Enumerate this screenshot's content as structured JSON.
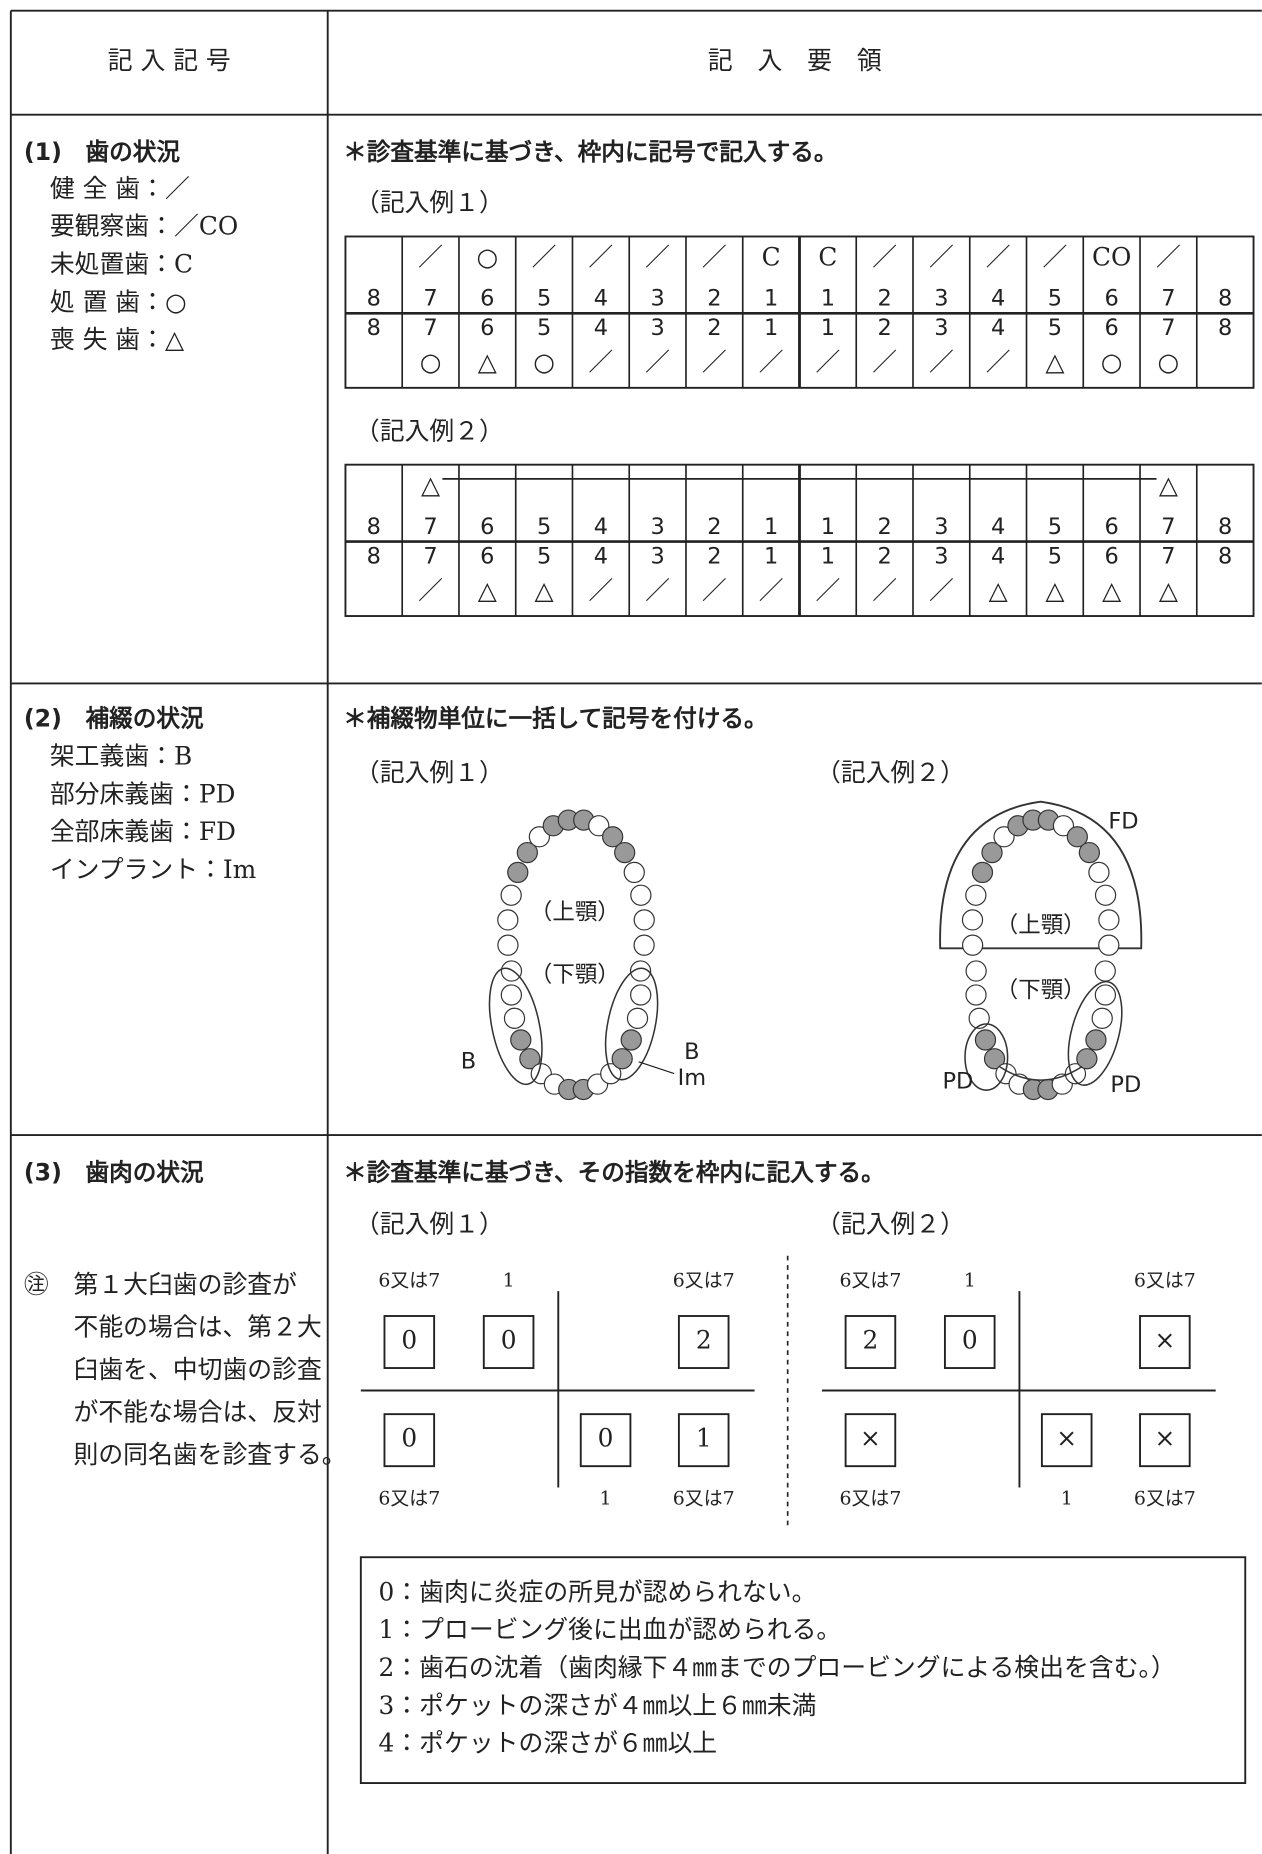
{
  "header": {
    "left": "記 入 記 号",
    "right": "記　入　要　領"
  },
  "sections": [
    {
      "title": "(1)　歯の状況",
      "items": [
        "健 全 歯：／",
        "要観察歯：／CO",
        "未処置歯：C",
        "処 置 歯：○",
        "喪 失 歯：△"
      ],
      "instruction": "＊診査基準に基づき、枠内に記号で記入する。",
      "examples": [
        {
          "label": "（記入例１）",
          "upper_symbols": [
            null,
            "／",
            "○",
            "／",
            "／",
            "／",
            "／",
            "C",
            "C",
            "／",
            "／",
            "／",
            "／",
            "CO",
            "／",
            null
          ],
          "upper_numbers": [
            8,
            7,
            6,
            5,
            4,
            3,
            2,
            1,
            1,
            2,
            3,
            4,
            5,
            6,
            7,
            8
          ],
          "lower_numbers": [
            8,
            7,
            6,
            5,
            4,
            3,
            2,
            1,
            1,
            2,
            3,
            4,
            5,
            6,
            7,
            8
          ],
          "lower_symbols": [
            null,
            "○",
            "△",
            "○",
            "／",
            "／",
            "／",
            "／",
            "／",
            "／",
            "／",
            "／",
            "△",
            "○",
            "○",
            null
          ]
        },
        {
          "label": "（記入例２）",
          "upper_symbols": [
            null,
            "△",
            null,
            null,
            null,
            null,
            null,
            null,
            null,
            null,
            null,
            null,
            null,
            null,
            "△",
            null
          ],
          "upper_numbers": [
            8,
            7,
            6,
            5,
            4,
            3,
            2,
            1,
            1,
            2,
            3,
            4,
            5,
            6,
            7,
            8
          ],
          "lower_numbers": [
            8,
            7,
            6,
            5,
            4,
            3,
            2,
            1,
            1,
            2,
            3,
            4,
            5,
            6,
            7,
            8
          ],
          "lower_symbols": [
            null,
            "／",
            "△",
            "△",
            "／",
            "／",
            "／",
            "／",
            "／",
            "／",
            "／",
            "△",
            "△",
            "△",
            "△",
            null
          ]
        }
      ]
    },
    {
      "title": "(2)　補綴の状況",
      "items": [
        "架工義歯：B",
        "部分床義歯：PD",
        "全部床義歯：FD",
        "インプラント：Im"
      ],
      "instruction": "＊補綴物単位に一括して記号を付ける。",
      "examples": [
        {
          "label": "（記入例１）",
          "labels": [
            "（上顎）",
            "（下顎）",
            "B",
            "B",
            "Im"
          ]
        },
        {
          "label": "（記入例２）",
          "labels": [
            "FD",
            "（上顎）",
            "（下顎）",
            "PD",
            "PD"
          ]
        }
      ]
    },
    {
      "title": "(3)　歯肉の状況",
      "note": [
        "㊟　第１大臼歯の診査が",
        "不能の場合は、第２大",
        "臼歯を、中切歯の診査",
        "が不能な場合は、反対",
        "則の同名歯を診査する。"
      ],
      "instruction": "＊診査基準に基づき、その指数を枠内に記入する。",
      "examples": [
        {
          "label": "（記入例１）",
          "top_labels": [
            "6又は7",
            "1",
            "6又は7"
          ],
          "top_values": [
            0,
            0,
            2
          ],
          "bottom_values": [
            0,
            0,
            1
          ],
          "bottom_labels": [
            "6又は7",
            "1",
            "6又は7"
          ]
        },
        {
          "label": "（記入例２）",
          "top_labels": [
            "6又は7",
            "1",
            "6又は7"
          ],
          "top_values": [
            2,
            0,
            "×"
          ],
          "bottom_values": [
            "×",
            "×",
            "×"
          ],
          "bottom_labels": [
            "6又は7",
            "1",
            "6又は7"
          ]
        }
      ],
      "legend": [
        "0：歯肉に炎症の所見が認められない。",
        "1：プロービング後に出血が認められる。",
        "2：歯石の沈着（歯肉縁下４㎜までのプロービングによる検出を含む。）",
        "3：ポケットの深さが４㎜以上６㎜未満",
        "4：ポケットの深さが６㎜以上"
      ]
    }
  ]
}
